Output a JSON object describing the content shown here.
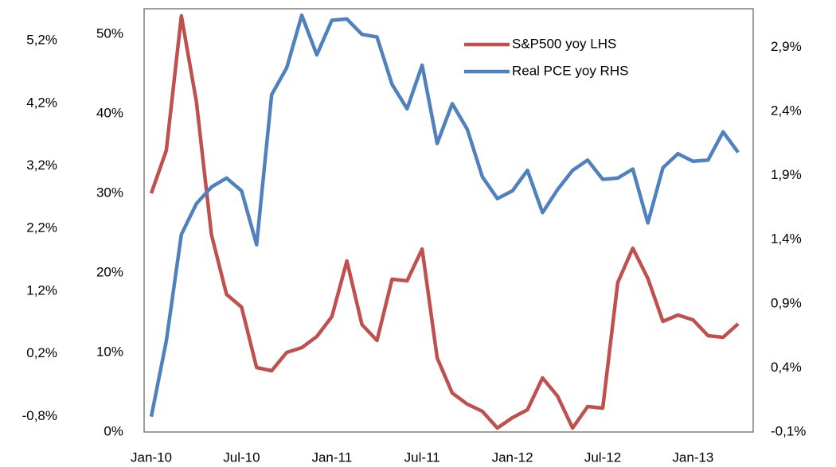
{
  "chart_data": {
    "type": "line",
    "categories": [
      "Jan-10",
      null,
      null,
      null,
      null,
      null,
      "Jul-10",
      null,
      null,
      null,
      null,
      null,
      "Jan-11",
      null,
      null,
      null,
      null,
      null,
      "Jul-11",
      null,
      null,
      null,
      null,
      null,
      "Jan-12",
      null,
      null,
      null,
      null,
      null,
      "Jul-12",
      null,
      null,
      null,
      null,
      null,
      "Jan-13",
      null,
      null,
      null
    ],
    "series": [
      {
        "name": "S&P500 yoy LHS",
        "color": "#c0504d",
        "axis": "y",
        "values": [
          30.0,
          35.4,
          52.3,
          41.5,
          24.8,
          17.3,
          15.7,
          8.1,
          7.7,
          10.0,
          10.6,
          12.0,
          14.5,
          21.5,
          13.5,
          11.5,
          19.2,
          19.0,
          23.0,
          9.3,
          4.9,
          3.5,
          2.6,
          0.5,
          1.8,
          2.8,
          6.8,
          4.5,
          0.5,
          3.2,
          3.0,
          18.8,
          23.1,
          19.3,
          13.9,
          14.7,
          14.1,
          12.1,
          11.9,
          13.6
        ]
      },
      {
        "name": "Real PCE yoy RHS",
        "color": "#4f81bd",
        "axis": "y2",
        "values": [
          0.02,
          0.61,
          1.44,
          1.68,
          1.81,
          1.88,
          1.78,
          1.36,
          2.53,
          2.74,
          3.15,
          2.84,
          3.11,
          3.12,
          3.0,
          2.98,
          2.61,
          2.42,
          2.76,
          2.15,
          2.46,
          2.26,
          1.89,
          1.72,
          1.78,
          1.94,
          1.61,
          1.79,
          1.94,
          2.02,
          1.87,
          1.88,
          1.95,
          1.53,
          1.96,
          2.07,
          2.01,
          2.02,
          2.24,
          2.08
        ]
      }
    ],
    "ylim": [
      0,
      53.2
    ],
    "yticks": [
      {
        "value": 0,
        "label": "0%"
      },
      {
        "value": 10,
        "label": "10%"
      },
      {
        "value": 20,
        "label": "20%"
      },
      {
        "value": 30,
        "label": "30%"
      },
      {
        "value": 40,
        "label": "40%"
      },
      {
        "value": 50,
        "label": "50%"
      }
    ],
    "y2lim": [
      -0.1,
      3.2
    ],
    "y2ticks": [
      {
        "value": -0.1,
        "label": "-0,1%"
      },
      {
        "value": 0.4,
        "label": "0,4%"
      },
      {
        "value": 0.9,
        "label": "0,9%"
      },
      {
        "value": 1.4,
        "label": "1,4%"
      },
      {
        "value": 1.9,
        "label": "1,9%"
      },
      {
        "value": 2.4,
        "label": "2,4%"
      },
      {
        "value": 2.9,
        "label": "2,9%"
      }
    ],
    "y3lim": [
      -1.05,
      5.71
    ],
    "y3ticks": [
      {
        "value": -0.8,
        "label": "-0,8%"
      },
      {
        "value": 0.2,
        "label": "0,2%"
      },
      {
        "value": 1.2,
        "label": "1,2%"
      },
      {
        "value": 2.2,
        "label": "2,2%"
      },
      {
        "value": 3.2,
        "label": "3,2%"
      },
      {
        "value": 4.2,
        "label": "4,2%"
      },
      {
        "value": 5.2,
        "label": "5,2%"
      }
    ],
    "legend": "top-right"
  }
}
